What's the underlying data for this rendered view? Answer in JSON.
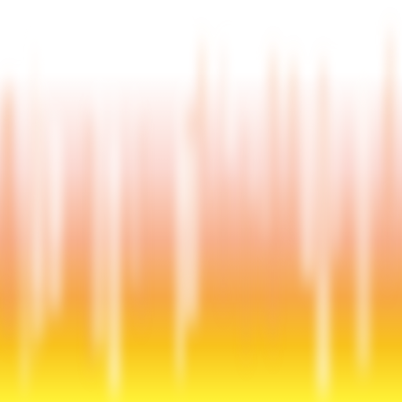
{
  "scene": {
    "description_visible_text": "",
    "colors": {
      "top": "#ffffff",
      "blush": "#fbd7d0",
      "peach": "#f7b08c",
      "orange": "#f6a845",
      "amber": "#f8c21c",
      "yellow": "#fff236"
    },
    "streak_highlight_color": "#ffffff",
    "streak_shadow_color": "#f4a06a"
  }
}
